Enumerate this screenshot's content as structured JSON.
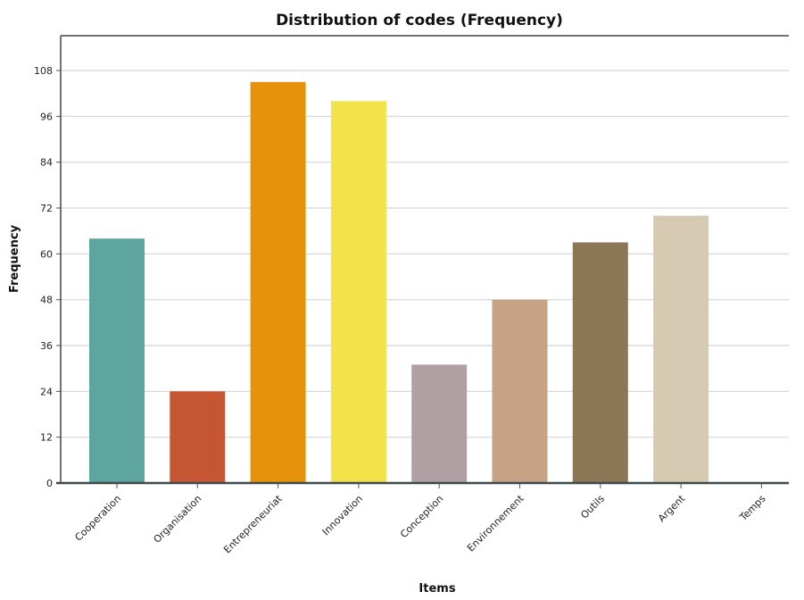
{
  "chart_data": {
    "type": "bar",
    "title": "Distribution of codes (Frequency)",
    "xlabel": "Items",
    "ylabel": "Frequency",
    "categories": [
      "Cooperation",
      "Organisation",
      "Entrepreneuriat",
      "Innovation",
      "Conception",
      "Environnement",
      "Outils",
      "Argent",
      "Temps"
    ],
    "values": [
      64,
      24,
      105,
      100,
      31,
      48,
      63,
      70,
      0
    ],
    "colors": [
      "#5ea5a2",
      "#c65534",
      "#e6930b",
      "#f2e34b",
      "#b0a0a4",
      "#c6a385",
      "#8b7755",
      "#d6cbb2",
      "#8b7755"
    ],
    "yticks": [
      0,
      12,
      24,
      36,
      48,
      60,
      72,
      84,
      96,
      108
    ],
    "ylim": [
      0,
      108
    ],
    "grid": true,
    "legend": "none"
  }
}
